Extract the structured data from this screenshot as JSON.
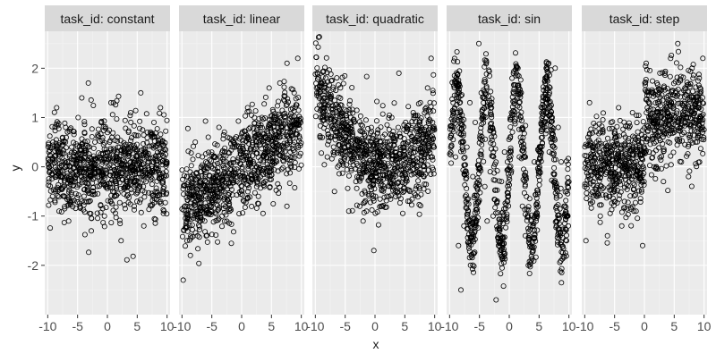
{
  "chart_data": {
    "type": "scatter",
    "xlabel": "x",
    "ylabel": "y",
    "xlim": [
      -10.5,
      10.5
    ],
    "ylim": [
      -3,
      2.75
    ],
    "x_ticks": [
      -10,
      -5,
      0,
      5,
      10
    ],
    "x_tick_labels": [
      "-10",
      "-5",
      "0",
      "5",
      "10"
    ],
    "y_ticks": [
      -2,
      -1,
      0,
      1,
      2
    ],
    "y_tick_labels": [
      "-2",
      "-1",
      "0",
      "1",
      "2"
    ],
    "grid": true,
    "legend": "none",
    "marker": "open-circle",
    "colors": {
      "panel_bg": "#EBEBEB",
      "strip_bg": "#D9D9D9",
      "grid_major": "#FFFFFF",
      "grid_minor": "#F4F4F4",
      "point": "#000000",
      "text": "#1A1A1A",
      "tick_text": "#4D4D4D"
    },
    "panels": [
      {
        "label": "task_id: constant",
        "function": "constant",
        "points": [
          [
            -9.8,
            0.3
          ],
          [
            -9.2,
            -0.6
          ],
          [
            -8.5,
            1.2
          ],
          [
            -8.1,
            -0.9
          ],
          [
            -7.6,
            0.1
          ],
          [
            -7.0,
            0.8
          ],
          [
            -6.5,
            -1.1
          ],
          [
            -6.0,
            0.4
          ],
          [
            -5.4,
            -0.3
          ],
          [
            -4.9,
            1.0
          ],
          [
            -4.3,
            -0.7
          ],
          [
            -3.8,
            0.2
          ],
          [
            -3.2,
            1.7
          ],
          [
            -2.7,
            -1.3
          ],
          [
            -2.1,
            0.5
          ],
          [
            -1.6,
            -0.2
          ],
          [
            -1.0,
            0.9
          ],
          [
            -0.5,
            -1.0
          ],
          [
            0.1,
            0.0
          ],
          [
            0.6,
            1.3
          ],
          [
            1.2,
            -0.6
          ],
          [
            1.7,
            0.6
          ],
          [
            2.3,
            -1.5
          ],
          [
            2.8,
            0.3
          ],
          [
            3.4,
            -0.4
          ],
          [
            3.9,
            1.1
          ],
          [
            4.5,
            -0.8
          ],
          [
            5.0,
            0.2
          ],
          [
            5.6,
            1.5
          ],
          [
            6.1,
            -1.2
          ],
          [
            6.7,
            0.7
          ],
          [
            7.2,
            -0.1
          ],
          [
            7.8,
            0.9
          ],
          [
            8.3,
            -0.5
          ],
          [
            8.9,
            1.2
          ],
          [
            9.5,
            -0.9
          ],
          [
            9.9,
            0.1
          ]
        ]
      },
      {
        "label": "task_id: linear",
        "function": "linear",
        "points": [
          [
            -9.8,
            -2.3
          ],
          [
            -9.2,
            -0.2
          ],
          [
            -8.6,
            -1.8
          ],
          [
            -8.0,
            -0.5
          ],
          [
            -7.4,
            -1.4
          ],
          [
            -6.8,
            -0.1
          ],
          [
            -6.2,
            -1.1
          ],
          [
            -5.6,
            0.6
          ],
          [
            -5.0,
            -0.9
          ],
          [
            -4.4,
            -0.2
          ],
          [
            -3.8,
            0.8
          ],
          [
            -3.2,
            -0.6
          ],
          [
            -2.6,
            0.1
          ],
          [
            -2.0,
            -0.9
          ],
          [
            -1.4,
            0.5
          ],
          [
            -0.8,
            -0.3
          ],
          [
            -0.2,
            0.6
          ],
          [
            0.4,
            -0.2
          ],
          [
            1.0,
            1.2
          ],
          [
            1.6,
            0.0
          ],
          [
            2.2,
            0.6
          ],
          [
            2.8,
            -0.6
          ],
          [
            3.4,
            1.0
          ],
          [
            4.0,
            0.3
          ],
          [
            4.6,
            1.6
          ],
          [
            5.2,
            0.1
          ],
          [
            5.8,
            0.9
          ],
          [
            6.4,
            1.7
          ],
          [
            7.0,
            0.4
          ],
          [
            7.6,
            2.1
          ],
          [
            8.2,
            0.8
          ],
          [
            8.8,
            1.5
          ],
          [
            9.4,
            2.2
          ],
          [
            9.9,
            0.9
          ]
        ]
      },
      {
        "label": "task_id: quadratic",
        "function": "quadratic",
        "points": [
          [
            -9.8,
            1.6
          ],
          [
            -9.2,
            0.6
          ],
          [
            -8.6,
            1.4
          ],
          [
            -8.0,
            0.2
          ],
          [
            -7.4,
            1.0
          ],
          [
            -6.8,
            -0.5
          ],
          [
            -6.2,
            0.9
          ],
          [
            -5.6,
            0.1
          ],
          [
            -5.0,
            0.6
          ],
          [
            -4.4,
            -0.9
          ],
          [
            -3.8,
            0.7
          ],
          [
            -3.2,
            -0.3
          ],
          [
            -2.6,
            0.5
          ],
          [
            -2.0,
            -1.1
          ],
          [
            -1.4,
            0.3
          ],
          [
            -0.8,
            -0.4
          ],
          [
            -0.2,
            -1.7
          ],
          [
            0.4,
            0.2
          ],
          [
            1.0,
            -0.8
          ],
          [
            1.6,
            0.4
          ],
          [
            2.2,
            -0.2
          ],
          [
            2.8,
            1.0
          ],
          [
            3.4,
            -0.5
          ],
          [
            4.0,
            1.9
          ],
          [
            4.6,
            0.2
          ],
          [
            5.2,
            0.8
          ],
          [
            5.8,
            -0.7
          ],
          [
            6.4,
            1.1
          ],
          [
            7.0,
            0.1
          ],
          [
            7.6,
            1.3
          ],
          [
            8.2,
            -0.2
          ],
          [
            8.8,
            1.6
          ],
          [
            9.4,
            2.2
          ],
          [
            9.9,
            0.4
          ]
        ]
      },
      {
        "label": "task_id: sin",
        "function": "sin",
        "points": [
          [
            -9.8,
            0.4
          ],
          [
            -9.4,
            1.3
          ],
          [
            -9.0,
            0.2
          ],
          [
            -8.5,
            -1.6
          ],
          [
            -8.1,
            -2.5
          ],
          [
            -7.6,
            -1.2
          ],
          [
            -7.1,
            0.4
          ],
          [
            -6.6,
            1.3
          ],
          [
            -6.1,
            -0.2
          ],
          [
            -5.7,
            0.9
          ],
          [
            -5.1,
            2.5
          ],
          [
            -4.7,
            1.5
          ],
          [
            -4.1,
            -0.4
          ],
          [
            -3.7,
            -1.1
          ],
          [
            -3.2,
            -0.1
          ],
          [
            -2.7,
            -1.0
          ],
          [
            -2.2,
            -2.7
          ],
          [
            -1.8,
            -1.6
          ],
          [
            -1.3,
            -0.3
          ],
          [
            -0.8,
            0.3
          ],
          [
            -0.3,
            0.1
          ],
          [
            0.2,
            1.0
          ],
          [
            0.7,
            1.9
          ],
          [
            1.2,
            2.0
          ],
          [
            1.7,
            0.2
          ],
          [
            2.2,
            -0.8
          ],
          [
            2.7,
            -1.4
          ],
          [
            3.2,
            -2.0
          ],
          [
            3.7,
            -1.1
          ],
          [
            4.2,
            0.1
          ],
          [
            4.7,
            -1.0
          ],
          [
            5.2,
            0.3
          ],
          [
            5.7,
            1.4
          ],
          [
            6.2,
            2.0
          ],
          [
            6.7,
            0.3
          ],
          [
            7.2,
            1.0
          ],
          [
            7.7,
            2.0
          ],
          [
            8.2,
            0.8
          ],
          [
            8.7,
            0.1
          ],
          [
            9.2,
            -0.8
          ],
          [
            9.6,
            -1.5
          ],
          [
            9.9,
            -1.2
          ]
        ]
      },
      {
        "label": "task_id: step",
        "function": "step",
        "points": [
          [
            -9.8,
            -1.5
          ],
          [
            -9.2,
            1.3
          ],
          [
            -8.6,
            -0.3
          ],
          [
            -8.0,
            0.5
          ],
          [
            -7.4,
            -1.0
          ],
          [
            -6.8,
            0.2
          ],
          [
            -6.2,
            -1.4
          ],
          [
            -5.6,
            0.9
          ],
          [
            -5.0,
            -0.5
          ],
          [
            -4.4,
            0.3
          ],
          [
            -3.8,
            -1.2
          ],
          [
            -3.2,
            0.6
          ],
          [
            -2.6,
            -0.2
          ],
          [
            -2.0,
            1.1
          ],
          [
            -1.4,
            -0.9
          ],
          [
            -0.8,
            0.4
          ],
          [
            -0.3,
            -1.6
          ],
          [
            0.3,
            2.1
          ],
          [
            0.8,
            0.3
          ],
          [
            1.4,
            1.5
          ],
          [
            2.0,
            0.0
          ],
          [
            2.6,
            1.9
          ],
          [
            3.2,
            -0.3
          ],
          [
            3.8,
            1.2
          ],
          [
            4.4,
            2.2
          ],
          [
            5.0,
            0.7
          ],
          [
            5.6,
            2.5
          ],
          [
            6.2,
            0.1
          ],
          [
            6.8,
            1.6
          ],
          [
            7.4,
            -0.2
          ],
          [
            8.0,
            2.0
          ],
          [
            8.6,
            0.5
          ],
          [
            9.2,
            1.8
          ],
          [
            9.8,
            2.2
          ]
        ]
      }
    ]
  }
}
